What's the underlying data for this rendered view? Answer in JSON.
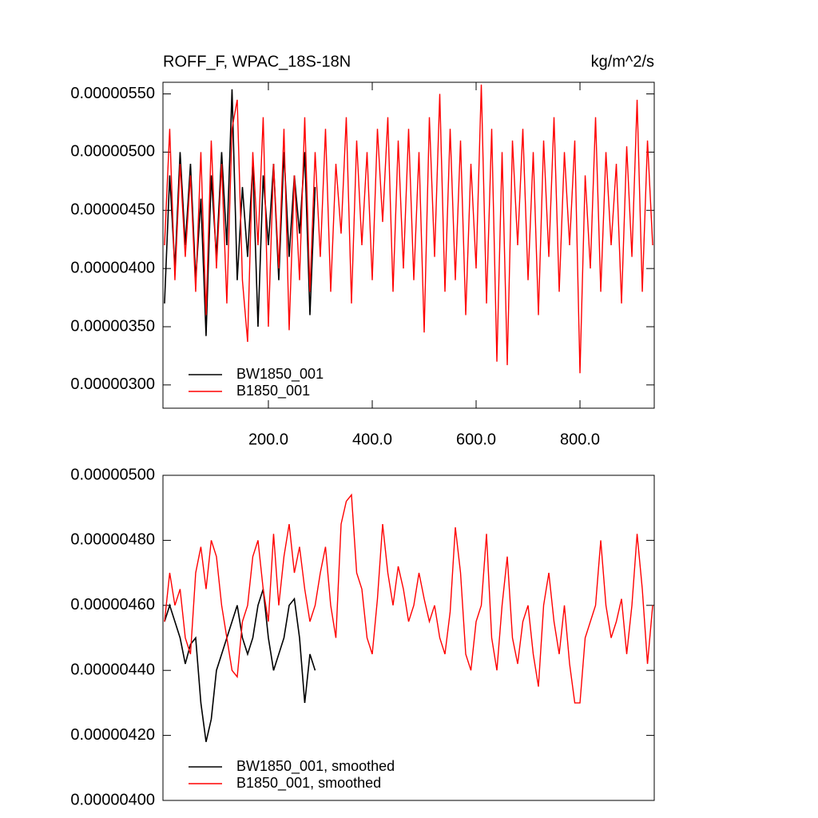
{
  "chart_data": [
    {
      "type": "line",
      "title": "ROFF_F, WPAC_18S-18N",
      "units_label": "kg/m^2/s",
      "xlim": [
        -3,
        943
      ],
      "ylim": [
        2.8e-06,
        5.6e-06
      ],
      "xticks": [
        {
          "value": 200,
          "label": "200.0"
        },
        {
          "value": 400,
          "label": "400.0"
        },
        {
          "value": 600,
          "label": "600.0"
        },
        {
          "value": 800,
          "label": "800.0"
        }
      ],
      "yticks": [
        {
          "value": 3e-06,
          "label": "0.00000300"
        },
        {
          "value": 3.5e-06,
          "label": "0.00000350"
        },
        {
          "value": 4e-06,
          "label": "0.00000400"
        },
        {
          "value": 4.5e-06,
          "label": "0.00000450"
        },
        {
          "value": 5e-06,
          "label": "0.00000500"
        },
        {
          "value": 5.5e-06,
          "label": "0.00000550"
        }
      ],
      "series": [
        {
          "name": "BW1850_001",
          "color": "#000000",
          "x": [
            0,
            10,
            20,
            30,
            40,
            50,
            60,
            70,
            80,
            90,
            100,
            110,
            120,
            130,
            140,
            150,
            160,
            170,
            180,
            190,
            200,
            210,
            220,
            230,
            240,
            250,
            260,
            270,
            280,
            290
          ],
          "values": [
            3.7e-06,
            4.8e-06,
            4e-06,
            5e-06,
            4.2e-06,
            4.9e-06,
            3.9e-06,
            4.6e-06,
            3.42e-06,
            4.8e-06,
            4.1e-06,
            5e-06,
            4.2e-06,
            5.54e-06,
            3.9e-06,
            4.7e-06,
            4.1e-06,
            4.9e-06,
            3.5e-06,
            4.8e-06,
            4.2e-06,
            4.9e-06,
            3.9e-06,
            5e-06,
            4.1e-06,
            4.8e-06,
            4.3e-06,
            5e-06,
            3.6e-06,
            4.7e-06
          ]
        },
        {
          "name": "B1850_001",
          "color": "#ff0000",
          "x": [
            0,
            10,
            20,
            30,
            40,
            50,
            60,
            70,
            80,
            90,
            100,
            110,
            120,
            130,
            140,
            150,
            160,
            170,
            180,
            190,
            200,
            210,
            220,
            230,
            240,
            250,
            260,
            270,
            280,
            290,
            300,
            310,
            320,
            330,
            340,
            350,
            360,
            370,
            380,
            390,
            400,
            410,
            420,
            430,
            440,
            450,
            460,
            470,
            480,
            490,
            500,
            510,
            520,
            530,
            540,
            550,
            560,
            570,
            580,
            590,
            600,
            610,
            620,
            630,
            640,
            650,
            660,
            670,
            680,
            690,
            700,
            710,
            720,
            730,
            740,
            750,
            760,
            770,
            780,
            790,
            800,
            810,
            820,
            830,
            840,
            850,
            860,
            870,
            880,
            890,
            900,
            910,
            920,
            930,
            940
          ],
          "values": [
            4.2e-06,
            5.2e-06,
            3.9e-06,
            4.9e-06,
            4.1e-06,
            4.8e-06,
            3.8e-06,
            5e-06,
            3.6e-06,
            5.1e-06,
            4e-06,
            4.9e-06,
            3.7e-06,
            5.2e-06,
            5.45e-06,
            3.9e-06,
            3.37e-06,
            5e-06,
            4.2e-06,
            5.3e-06,
            3.5e-06,
            4.9e-06,
            4e-06,
            5.2e-06,
            3.47e-06,
            4.8e-06,
            3.9e-06,
            5.3e-06,
            3.8e-06,
            5e-06,
            4.1e-06,
            5.2e-06,
            3.8e-06,
            4.9e-06,
            4.3e-06,
            5.3e-06,
            3.7e-06,
            5.1e-06,
            4.2e-06,
            5e-06,
            3.9e-06,
            5.2e-06,
            4.4e-06,
            5.3e-06,
            3.8e-06,
            5.1e-06,
            4e-06,
            5.2e-06,
            3.9e-06,
            5e-06,
            3.45e-06,
            5.3e-06,
            4.1e-06,
            5.5e-06,
            3.8e-06,
            5.2e-06,
            3.9e-06,
            5.1e-06,
            3.6e-06,
            4.9e-06,
            4e-06,
            5.58e-06,
            3.7e-06,
            5.2e-06,
            3.2e-06,
            5e-06,
            3.17e-06,
            5.1e-06,
            4.2e-06,
            5.2e-06,
            3.9e-06,
            5e-06,
            3.6e-06,
            5.1e-06,
            4.1e-06,
            5.3e-06,
            3.8e-06,
            5e-06,
            4.2e-06,
            5.1e-06,
            3.1e-06,
            4.8e-06,
            4e-06,
            5.3e-06,
            3.8e-06,
            5e-06,
            4.2e-06,
            4.9e-06,
            3.7e-06,
            5.05e-06,
            4.1e-06,
            5.45e-06,
            3.8e-06,
            5.1e-06,
            4.2e-06
          ]
        }
      ]
    },
    {
      "type": "line",
      "xlim": [
        -3,
        943
      ],
      "ylim": [
        4e-06,
        5e-06
      ],
      "yticks": [
        {
          "value": 4e-06,
          "label": "0.00000400"
        },
        {
          "value": 4.2e-06,
          "label": "0.00000420"
        },
        {
          "value": 4.4e-06,
          "label": "0.00000440"
        },
        {
          "value": 4.6e-06,
          "label": "0.00000460"
        },
        {
          "value": 4.8e-06,
          "label": "0.00000480"
        },
        {
          "value": 5e-06,
          "label": "0.00000500"
        }
      ],
      "series": [
        {
          "name": "BW1850_001, smoothed",
          "color": "#000000",
          "x": [
            0,
            10,
            20,
            30,
            40,
            50,
            60,
            70,
            80,
            90,
            100,
            110,
            120,
            130,
            140,
            150,
            160,
            170,
            180,
            190,
            200,
            210,
            220,
            230,
            240,
            250,
            260,
            270,
            280,
            290
          ],
          "values": [
            4.55e-06,
            4.6e-06,
            4.55e-06,
            4.5e-06,
            4.42e-06,
            4.48e-06,
            4.5e-06,
            4.3e-06,
            4.18e-06,
            4.25e-06,
            4.4e-06,
            4.45e-06,
            4.5e-06,
            4.55e-06,
            4.6e-06,
            4.5e-06,
            4.45e-06,
            4.5e-06,
            4.6e-06,
            4.65e-06,
            4.5e-06,
            4.4e-06,
            4.45e-06,
            4.5e-06,
            4.6e-06,
            4.62e-06,
            4.5e-06,
            4.3e-06,
            4.45e-06,
            4.4e-06
          ]
        },
        {
          "name": "B1850_001, smoothed",
          "color": "#ff0000",
          "x": [
            0,
            10,
            20,
            30,
            40,
            50,
            60,
            70,
            80,
            90,
            100,
            110,
            120,
            130,
            140,
            150,
            160,
            170,
            180,
            190,
            200,
            210,
            220,
            230,
            240,
            250,
            260,
            270,
            280,
            290,
            300,
            310,
            320,
            330,
            340,
            350,
            360,
            370,
            380,
            390,
            400,
            410,
            420,
            430,
            440,
            450,
            460,
            470,
            480,
            490,
            500,
            510,
            520,
            530,
            540,
            550,
            560,
            570,
            580,
            590,
            600,
            610,
            620,
            630,
            640,
            650,
            660,
            670,
            680,
            690,
            700,
            710,
            720,
            730,
            740,
            750,
            760,
            770,
            780,
            790,
            800,
            810,
            820,
            830,
            840,
            850,
            860,
            870,
            880,
            890,
            900,
            910,
            920,
            930,
            940
          ],
          "values": [
            4.55e-06,
            4.7e-06,
            4.6e-06,
            4.65e-06,
            4.5e-06,
            4.45e-06,
            4.7e-06,
            4.78e-06,
            4.65e-06,
            4.8e-06,
            4.75e-06,
            4.6e-06,
            4.5e-06,
            4.4e-06,
            4.38e-06,
            4.55e-06,
            4.6e-06,
            4.75e-06,
            4.8e-06,
            4.65e-06,
            4.55e-06,
            4.82e-06,
            4.6e-06,
            4.75e-06,
            4.85e-06,
            4.7e-06,
            4.78e-06,
            4.65e-06,
            4.55e-06,
            4.6e-06,
            4.7e-06,
            4.78e-06,
            4.6e-06,
            4.5e-06,
            4.85e-06,
            4.92e-06,
            4.94e-06,
            4.7e-06,
            4.65e-06,
            4.5e-06,
            4.45e-06,
            4.62e-06,
            4.85e-06,
            4.7e-06,
            4.6e-06,
            4.72e-06,
            4.65e-06,
            4.55e-06,
            4.6e-06,
            4.7e-06,
            4.62e-06,
            4.55e-06,
            4.6e-06,
            4.5e-06,
            4.45e-06,
            4.58e-06,
            4.84e-06,
            4.7e-06,
            4.45e-06,
            4.4e-06,
            4.55e-06,
            4.6e-06,
            4.82e-06,
            4.5e-06,
            4.4e-06,
            4.6e-06,
            4.75e-06,
            4.5e-06,
            4.42e-06,
            4.55e-06,
            4.6e-06,
            4.45e-06,
            4.35e-06,
            4.6e-06,
            4.7e-06,
            4.55e-06,
            4.45e-06,
            4.6e-06,
            4.42e-06,
            4.3e-06,
            4.3e-06,
            4.5e-06,
            4.55e-06,
            4.6e-06,
            4.8e-06,
            4.6e-06,
            4.5e-06,
            4.55e-06,
            4.62e-06,
            4.45e-06,
            4.6e-06,
            4.82e-06,
            4.65e-06,
            4.42e-06,
            4.6e-06
          ]
        }
      ]
    }
  ]
}
